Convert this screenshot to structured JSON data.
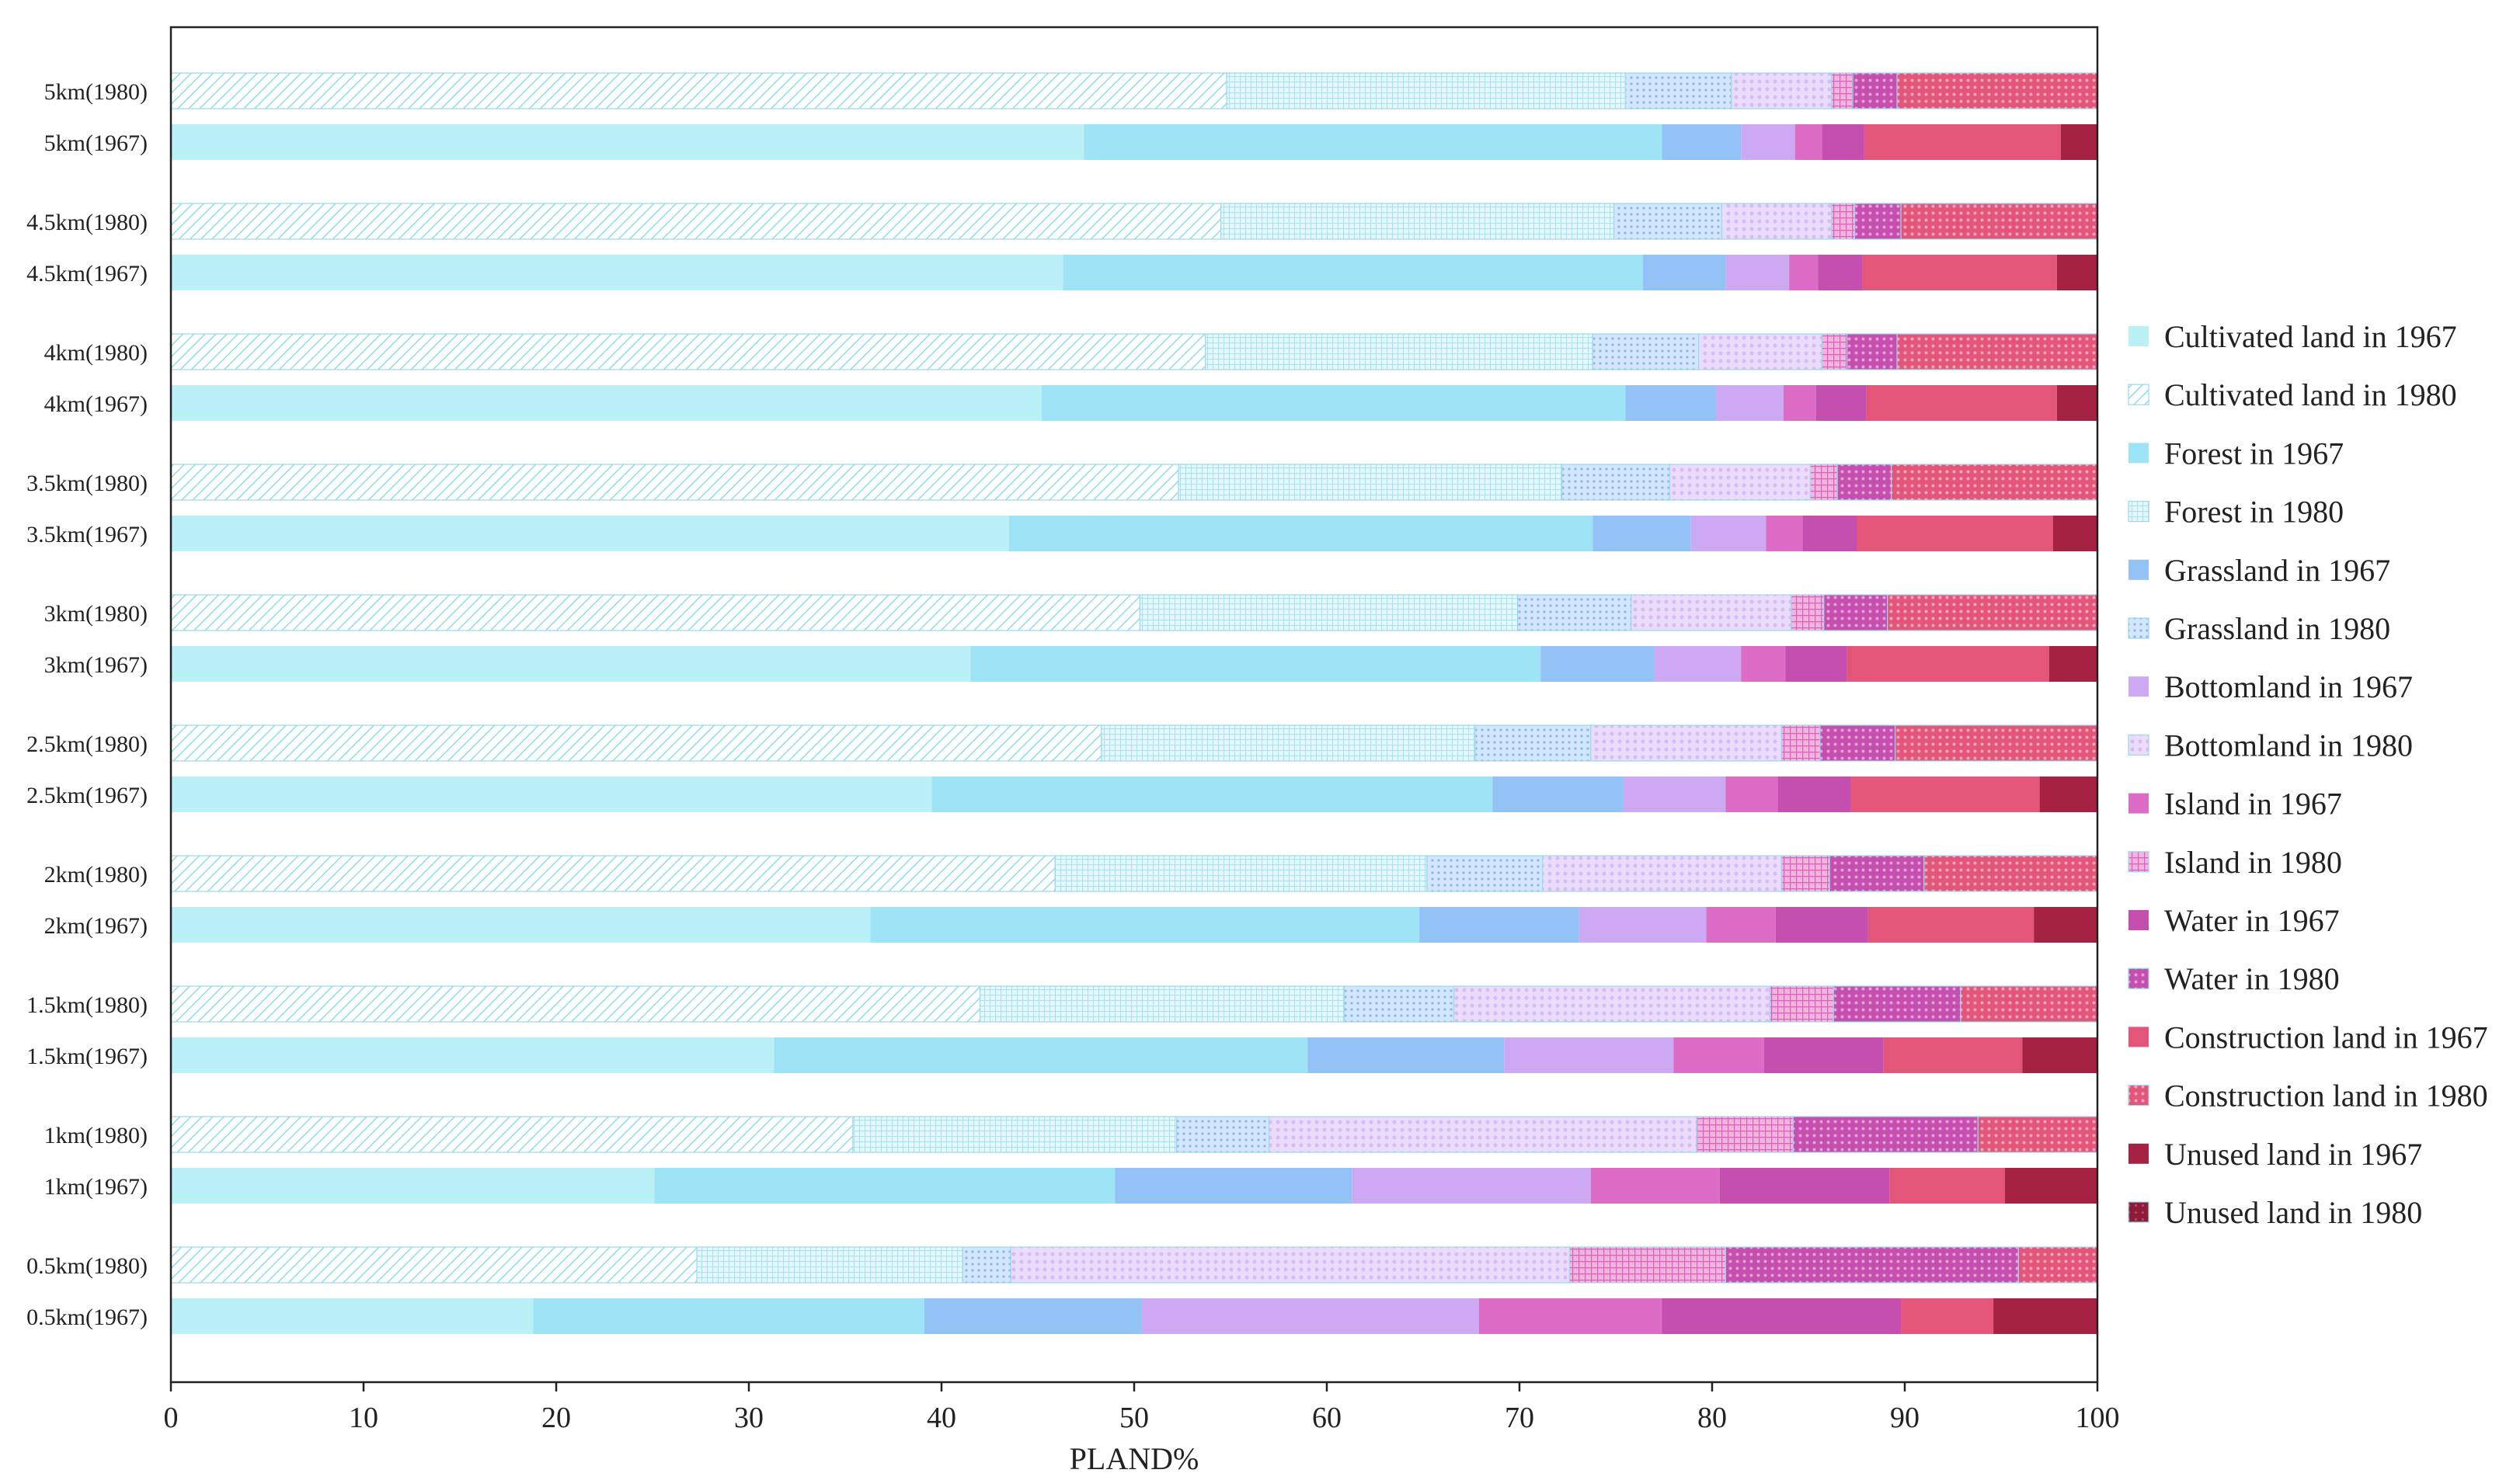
{
  "chart_data": {
    "type": "bar",
    "orientation": "horizontal",
    "stacked": true,
    "xlabel": "PLAND%",
    "xlim": [
      0,
      100
    ],
    "xticks": [
      0,
      10,
      20,
      30,
      40,
      50,
      60,
      70,
      80,
      90,
      100
    ],
    "grid": false,
    "legend_position": "right",
    "categories": [
      "Cultivated land",
      "Forest",
      "Grassland",
      "Bottomland",
      "Island",
      "Water",
      "Construction land",
      "Unused land"
    ],
    "category_colors": [
      "#b9f1f7",
      "#9fe3f6",
      "#93c3f6",
      "#cca9f2",
      "#dc6cc5",
      "#c54fae",
      "#e4557a",
      "#a62243"
    ],
    "legend": [
      {
        "label": "Cultivated land in 1967",
        "category": 0,
        "year": "1967"
      },
      {
        "label": "Cultivated land in 1980",
        "category": 0,
        "year": "1980"
      },
      {
        "label": "Forest in 1967",
        "category": 1,
        "year": "1967"
      },
      {
        "label": "Forest in 1980",
        "category": 1,
        "year": "1980"
      },
      {
        "label": "Grassland in 1967",
        "category": 2,
        "year": "1967"
      },
      {
        "label": "Grassland in 1980",
        "category": 2,
        "year": "1980"
      },
      {
        "label": "Bottomland in 1967",
        "category": 3,
        "year": "1967"
      },
      {
        "label": "Bottomland in 1980",
        "category": 3,
        "year": "1980"
      },
      {
        "label": "Island in 1967",
        "category": 4,
        "year": "1967"
      },
      {
        "label": "Island in 1980",
        "category": 4,
        "year": "1980"
      },
      {
        "label": "Water in 1967",
        "category": 5,
        "year": "1967"
      },
      {
        "label": "Water in 1980",
        "category": 5,
        "year": "1980"
      },
      {
        "label": "Construction land in 1967",
        "category": 6,
        "year": "1967"
      },
      {
        "label": "Construction land in 1980",
        "category": 6,
        "year": "1980"
      },
      {
        "label": "Unused land in 1967",
        "category": 7,
        "year": "1967"
      },
      {
        "label": "Unused land in 1980",
        "category": 7,
        "year": "1980"
      }
    ],
    "rows": [
      {
        "label": "5km(1980)",
        "year": "1980",
        "values": [
          54.8,
          20.7,
          5.5,
          5.2,
          1.1,
          2.3,
          10.4,
          0
        ]
      },
      {
        "label": "5km(1967)",
        "year": "1967",
        "values": [
          47.4,
          30.0,
          4.1,
          2.8,
          1.4,
          2.2,
          10.2,
          1.9
        ]
      },
      {
        "label": "4.5km(1980)",
        "year": "1980",
        "values": [
          54.5,
          20.4,
          5.6,
          5.7,
          1.2,
          2.4,
          10.2,
          0
        ]
      },
      {
        "label": "4.5km(1967)",
        "year": "1967",
        "values": [
          46.3,
          30.1,
          4.3,
          3.3,
          1.5,
          2.3,
          10.1,
          2.1
        ]
      },
      {
        "label": "4km(1980)",
        "year": "1980",
        "values": [
          53.7,
          20.1,
          5.5,
          6.4,
          1.3,
          2.6,
          10.4,
          0
        ]
      },
      {
        "label": "4km(1967)",
        "year": "1967",
        "values": [
          45.2,
          30.3,
          4.7,
          3.5,
          1.7,
          2.6,
          9.9,
          2.1
        ]
      },
      {
        "label": "3.5km(1980)",
        "year": "1980",
        "values": [
          52.3,
          19.9,
          5.6,
          7.3,
          1.4,
          2.8,
          10.7,
          0
        ]
      },
      {
        "label": "3.5km(1967)",
        "year": "1967",
        "values": [
          43.5,
          30.3,
          5.1,
          3.9,
          1.9,
          2.8,
          10.2,
          2.3
        ]
      },
      {
        "label": "3km(1980)",
        "year": "1980",
        "values": [
          50.3,
          19.6,
          5.9,
          8.3,
          1.7,
          3.3,
          10.9,
          0
        ]
      },
      {
        "label": "3km(1967)",
        "year": "1967",
        "values": [
          41.5,
          29.6,
          5.9,
          4.5,
          2.3,
          3.2,
          10.5,
          2.5
        ]
      },
      {
        "label": "2.5km(1980)",
        "year": "1980",
        "values": [
          48.3,
          19.4,
          6.0,
          9.9,
          2.0,
          3.9,
          10.5,
          0
        ]
      },
      {
        "label": "2.5km(1967)",
        "year": "1967",
        "values": [
          39.5,
          29.1,
          6.8,
          5.3,
          2.7,
          3.8,
          9.8,
          3.0
        ]
      },
      {
        "label": "2km(1980)",
        "year": "1980",
        "values": [
          45.9,
          19.3,
          6.0,
          12.4,
          2.5,
          4.9,
          9.0,
          0
        ]
      },
      {
        "label": "2km(1967)",
        "year": "1967",
        "values": [
          36.3,
          28.5,
          8.3,
          6.6,
          3.6,
          4.8,
          8.6,
          3.7
        ]
      },
      {
        "label": "1.5km(1980)",
        "year": "1980",
        "values": [
          42.0,
          18.9,
          5.7,
          16.4,
          3.3,
          6.6,
          7.1,
          0
        ]
      },
      {
        "label": "1.5km(1967)",
        "year": "1967",
        "values": [
          31.3,
          27.7,
          10.2,
          8.8,
          4.7,
          6.2,
          7.2,
          3.9
        ]
      },
      {
        "label": "1km(1980)",
        "year": "1980",
        "values": [
          35.4,
          16.8,
          4.8,
          22.2,
          5.0,
          9.6,
          6.2,
          0
        ]
      },
      {
        "label": "1km(1967)",
        "year": "1967",
        "values": [
          25.1,
          23.9,
          12.3,
          12.4,
          6.7,
          8.8,
          6.0,
          4.8
        ]
      },
      {
        "label": "0.5km(1980)",
        "year": "1980",
        "values": [
          27.3,
          13.8,
          2.5,
          29.0,
          8.1,
          15.2,
          4.1,
          0
        ]
      },
      {
        "label": "0.5km(1967)",
        "year": "1967",
        "values": [
          18.8,
          20.3,
          11.3,
          17.5,
          9.5,
          12.4,
          4.8,
          5.4
        ]
      }
    ]
  }
}
